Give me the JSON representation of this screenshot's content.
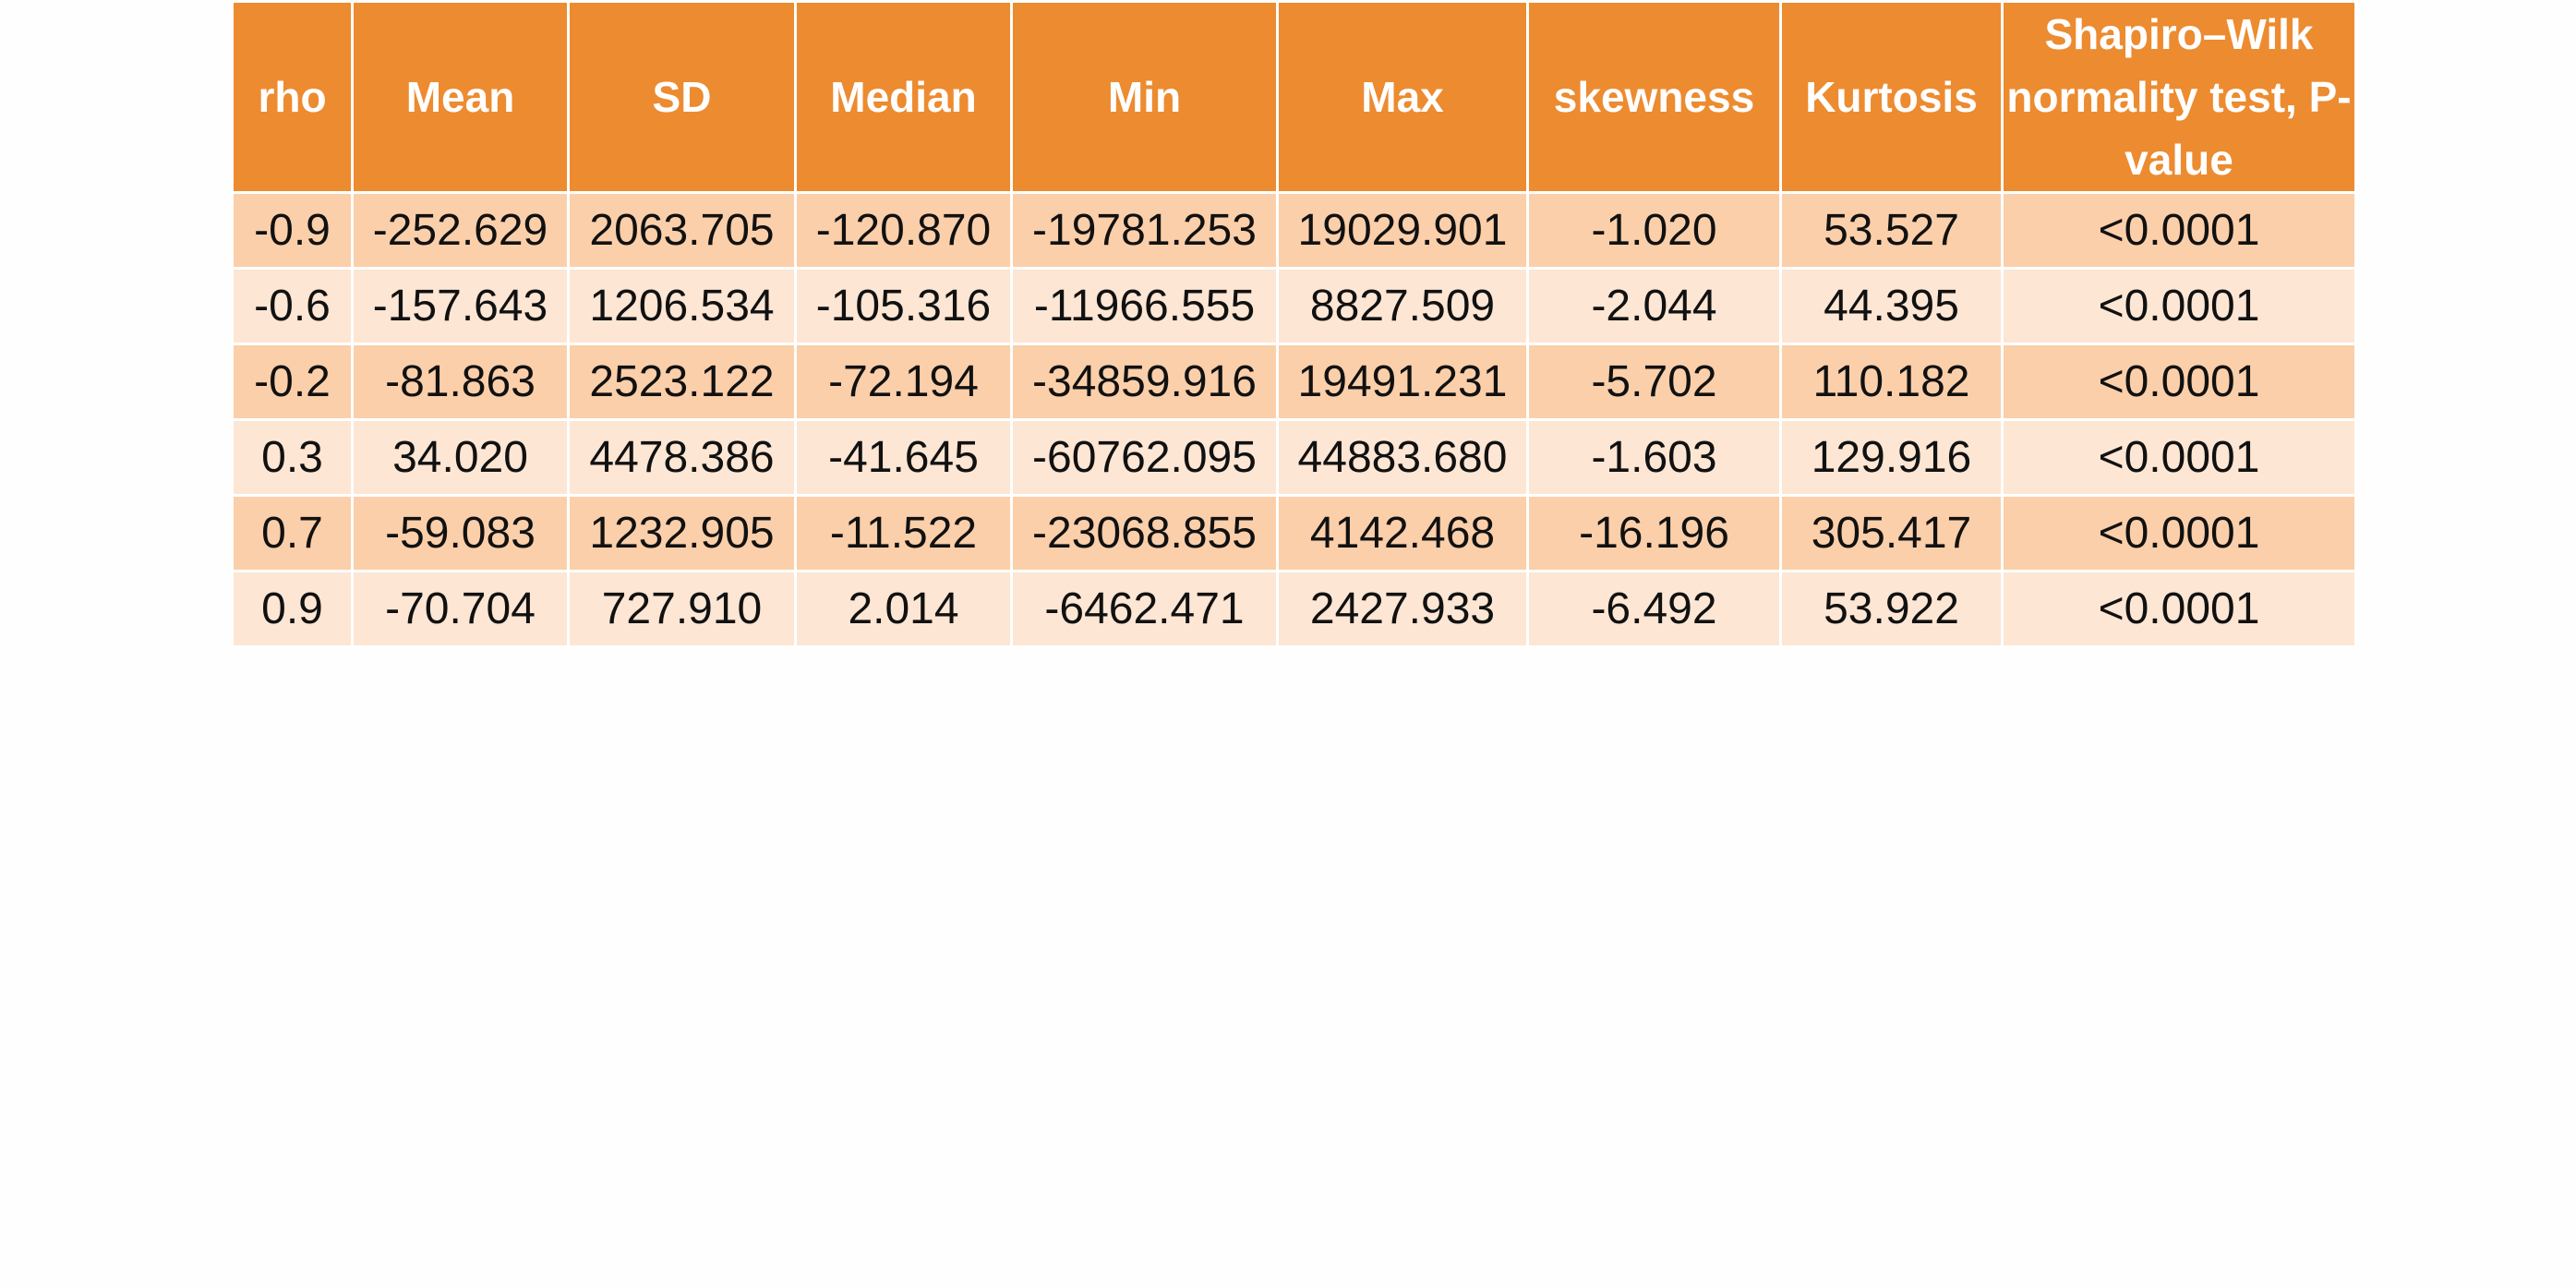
{
  "table": {
    "headers": [
      "rho",
      "Mean",
      "SD",
      "Median",
      "Min",
      "Max",
      "skewness",
      "Kurtosis",
      "Shapiro–Wilk normality test, P-value"
    ],
    "rows": [
      [
        "-0.9",
        "-252.629",
        "2063.705",
        "-120.870",
        "-19781.253",
        "19029.901",
        "-1.020",
        "53.527",
        "<0.0001"
      ],
      [
        "-0.6",
        "-157.643",
        "1206.534",
        "-105.316",
        "-11966.555",
        "8827.509",
        "-2.044",
        "44.395",
        "<0.0001"
      ],
      [
        "-0.2",
        "-81.863",
        "2523.122",
        "-72.194",
        "-34859.916",
        "19491.231",
        "-5.702",
        "110.182",
        "<0.0001"
      ],
      [
        "0.3",
        "34.020",
        "4478.386",
        "-41.645",
        "-60762.095",
        "44883.680",
        "-1.603",
        "129.916",
        "<0.0001"
      ],
      [
        "0.7",
        "-59.083",
        "1232.905",
        "-11.522",
        "-23068.855",
        "4142.468",
        "-16.196",
        "305.417",
        "<0.0001"
      ],
      [
        "0.9",
        "-70.704",
        "727.910",
        "2.014",
        "-6462.471",
        "2427.933",
        "-6.492",
        "53.922",
        "<0.0001"
      ]
    ]
  },
  "colors": {
    "header_bg": "#ed8b30",
    "row_dark": "#fbcfaa",
    "row_light": "#fde6d4"
  }
}
